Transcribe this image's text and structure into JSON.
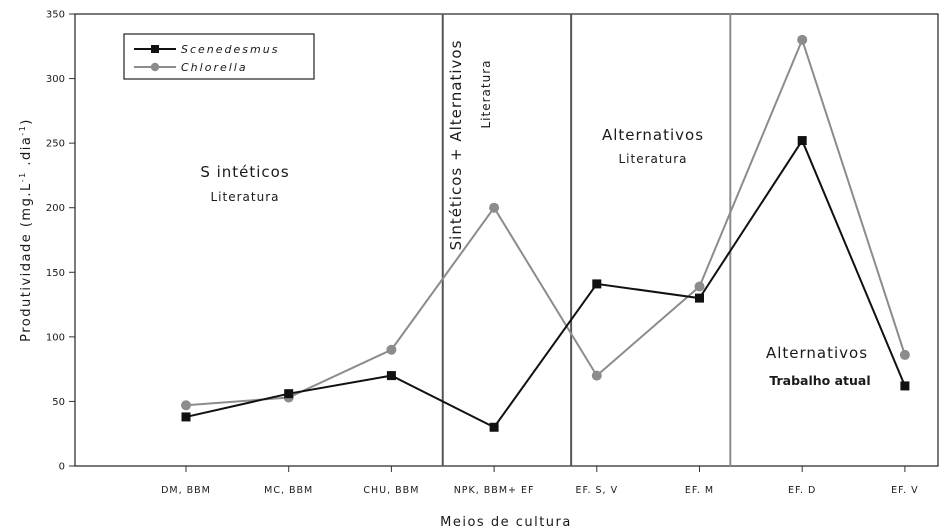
{
  "chart_data": {
    "type": "line",
    "xlabel": "Meios de cultura",
    "ylabel": "Produtividade (mg.L",
    "ylabel_sup1": "-1",
    "ylabel_mid": " .dia",
    "ylabel_sup2": "-1",
    "ylabel_end": ")",
    "ylim": [
      0,
      350
    ],
    "yticks": [
      "0",
      "50",
      "100",
      "150",
      "200",
      "250",
      "300",
      "350"
    ],
    "categories": [
      "DM, BBM",
      "MC, BBM",
      "CHU, BBM",
      "NPK, BBM+ EF",
      "EF. S, V",
      "EF. M",
      "EF. D",
      "EF. V"
    ],
    "series": [
      {
        "name": "Scenedesmus",
        "color": "#111111",
        "marker": "square",
        "values": [
          38,
          56,
          70,
          30,
          141,
          130,
          252,
          62
        ]
      },
      {
        "name": "Chlorella",
        "color": "#8c8c8c",
        "marker": "circle",
        "values": [
          47,
          53,
          90,
          200,
          70,
          139,
          330,
          86
        ]
      }
    ],
    "dividers": [
      {
        "after_index": 2.5,
        "color": "#555555"
      },
      {
        "after_index": 3.75,
        "color": "#555555"
      },
      {
        "after_index": 5.3,
        "color": "#8c8c8c"
      }
    ],
    "regions": [
      {
        "title": "S intéticos",
        "subtitle": "Literatura"
      },
      {
        "title": "Sintéticos + Alternativos",
        "subtitle": "Literatura"
      },
      {
        "title": "Alternativos",
        "subtitle": "Literatura"
      },
      {
        "title": "Alternativos",
        "subtitle": "Trabalho atual"
      }
    ],
    "legend_position": "top-left",
    "grid": false
  }
}
